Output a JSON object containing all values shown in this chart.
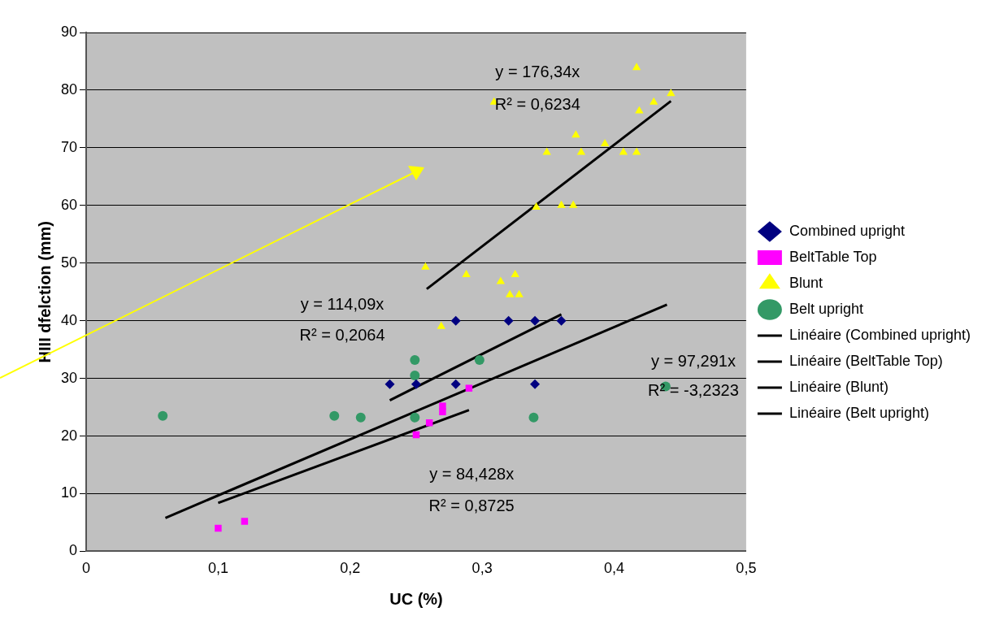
{
  "chart_data": {
    "type": "scatter",
    "xlabel": "UC (%)",
    "ylabel": "HIII dfelction (mm)",
    "xlim": [
      0,
      0.5
    ],
    "xticks": [
      0,
      {
        "value": 0.1,
        "label": "0,1"
      },
      {
        "value": 0.2,
        "label": "0,2"
      },
      {
        "value": 0.3,
        "label": "0,3"
      },
      {
        "value": 0.4,
        "label": "0,4"
      },
      {
        "value": 0.5,
        "label": "0,5"
      }
    ],
    "ylim": [
      0,
      90
    ],
    "yticks": [
      0,
      10,
      20,
      30,
      40,
      50,
      60,
      70,
      80,
      90
    ],
    "grid": "y",
    "legend": "right",
    "series": [
      {
        "name": "Combined upright",
        "type": "scatter",
        "marker": "diamond",
        "color": "#000080",
        "x": [
          0.23,
          0.25,
          0.28,
          0.28,
          0.32,
          0.34,
          0.34,
          0.36
        ],
        "values": [
          29,
          29,
          40,
          29,
          40,
          40,
          29,
          40
        ]
      },
      {
        "name": "BeltTable Top",
        "type": "scatter",
        "marker": "square",
        "color": "#ff00ff",
        "x": [
          0.1,
          0.12,
          0.25,
          0.26,
          0.27,
          0.27,
          0.29
        ],
        "values": [
          4,
          5.2,
          20.2,
          22.3,
          24.2,
          25.2,
          28.3
        ]
      },
      {
        "name": "Blunt",
        "type": "scatter",
        "marker": "triangle",
        "color": "#ffff00",
        "x": [
          0.417,
          0.443,
          0.43,
          0.419,
          0.309,
          0.371,
          0.393,
          0.349,
          0.375,
          0.407,
          0.417,
          0.341,
          0.36,
          0.369,
          0.257,
          0.288,
          0.325,
          0.314,
          0.321,
          0.328,
          0.269
        ],
        "values": [
          83.9,
          79.4,
          77.9,
          76.4,
          77.9,
          72.2,
          70.7,
          69.2,
          69.2,
          69.2,
          69.2,
          59.7,
          60,
          60,
          49.3,
          48,
          48,
          46.8,
          44.5,
          44.5,
          39
        ]
      },
      {
        "name": "Belt upright",
        "type": "scatter",
        "marker": "circle",
        "color": "#339966",
        "x": [
          0.058,
          0.188,
          0.208,
          0.249,
          0.249,
          0.249,
          0.298,
          0.339,
          0.439
        ],
        "values": [
          23.5,
          23.5,
          23.2,
          33.2,
          30.5,
          23.2,
          33.2,
          23.2,
          28.6
        ]
      },
      {
        "name": "Linéaire (Combined upright)",
        "type": "line",
        "marker": "none",
        "color": "#000000",
        "x": [
          0.23,
          0.36
        ],
        "values": [
          26.2,
          41.1
        ]
      },
      {
        "name": "Linéaire (BeltTable Top)",
        "type": "line",
        "marker": "none",
        "color": "#000000",
        "x": [
          0.1,
          0.29
        ],
        "values": [
          8.4,
          24.5
        ]
      },
      {
        "name": "Linéaire (Blunt)",
        "type": "line",
        "marker": "none",
        "color": "#000000",
        "x": [
          0.258,
          0.443
        ],
        "values": [
          45.5,
          78.1
        ]
      },
      {
        "name": "Linéaire (Belt upright)",
        "type": "line",
        "marker": "none",
        "color": "#000000",
        "x": [
          0.06,
          0.44
        ],
        "values": [
          5.8,
          42.8
        ]
      }
    ],
    "annotations": [
      "y = 176,34x",
      "R² = 0,6234",
      "y = 114,09x",
      "R² = 0,2064",
      "y = 97,291x",
      "R² = -3,2323",
      "y = 84,428x",
      "R² = 0,8725"
    ]
  }
}
